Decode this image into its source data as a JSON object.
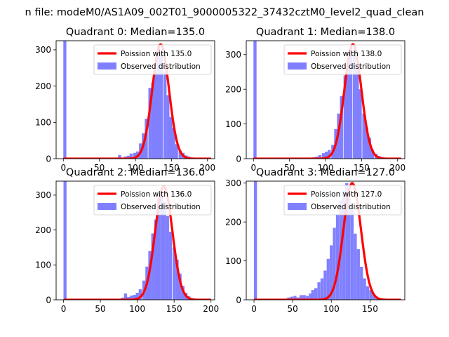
{
  "figure": {
    "suptitle": "n file: modeM0/AS1A09_002T01_9000005322_37432cztM0_level2_quad_clean"
  },
  "colors": {
    "poisson": "#ff0000",
    "observed": "#8080ff",
    "axis": "#000000"
  },
  "chart_data": [
    {
      "type": "bar",
      "title": "Quadrant 0: Median=135.0",
      "xlim": [
        -10,
        210
      ],
      "ylim": [
        0,
        325
      ],
      "xticks": [
        0,
        50,
        100,
        150,
        200
      ],
      "yticks": [
        0,
        100,
        200,
        300
      ],
      "legend_position": "top-right",
      "poisson_mean": 135.0,
      "poisson_peak": 315,
      "series": [
        {
          "name": "Poission with 135.0",
          "kind": "line"
        },
        {
          "name": "Observed distribution",
          "kind": "histogram",
          "bin_width": 4.2,
          "bins_x": [
            0,
            4,
            8,
            13,
            17,
            21,
            25,
            29,
            34,
            38,
            42,
            46,
            50,
            55,
            59,
            63,
            67,
            71,
            76,
            80,
            84,
            88,
            92,
            97,
            101,
            105,
            109,
            113,
            118,
            122,
            126,
            130,
            134,
            139,
            143,
            147,
            151,
            155,
            160,
            164,
            168,
            172,
            176,
            181,
            185,
            189,
            193,
            197
          ],
          "counts": [
            340,
            0,
            0,
            0,
            0,
            0,
            0,
            0,
            0,
            0,
            0,
            0,
            0,
            0,
            0,
            0,
            0,
            0,
            10,
            0,
            6,
            8,
            14,
            16,
            20,
            42,
            70,
            110,
            195,
            210,
            245,
            310,
            290,
            240,
            175,
            115,
            85,
            40,
            22,
            16,
            9,
            6,
            3,
            2,
            1,
            1,
            1,
            1
          ]
        }
      ]
    },
    {
      "type": "bar",
      "title": "Quadrant 1: Median=138.0",
      "xlim": [
        -10,
        210
      ],
      "ylim": [
        0,
        340
      ],
      "xticks": [
        0,
        50,
        100,
        150,
        200
      ],
      "yticks": [
        0,
        100,
        200,
        300
      ],
      "legend_position": "top-right",
      "poisson_mean": 138.0,
      "poisson_peak": 330,
      "series": [
        {
          "name": "Poission with 138.0",
          "kind": "line"
        },
        {
          "name": "Observed distribution",
          "kind": "histogram",
          "bin_width": 4.3,
          "bins_x": [
            0,
            4,
            9,
            13,
            17,
            22,
            26,
            30,
            34,
            39,
            43,
            47,
            52,
            56,
            60,
            65,
            69,
            73,
            77,
            82,
            86,
            90,
            95,
            99,
            103,
            108,
            112,
            116,
            120,
            125,
            129,
            133,
            138,
            142,
            146,
            151,
            155,
            159,
            163,
            168,
            172,
            176,
            181,
            185,
            189,
            194,
            198
          ],
          "counts": [
            340,
            0,
            0,
            0,
            0,
            0,
            0,
            0,
            0,
            0,
            0,
            0,
            0,
            0,
            0,
            0,
            0,
            0,
            3,
            4,
            6,
            10,
            16,
            20,
            25,
            40,
            85,
            130,
            180,
            240,
            270,
            320,
            315,
            260,
            200,
            130,
            90,
            60,
            25,
            14,
            8,
            5,
            3,
            2,
            1,
            1,
            1
          ]
        }
      ]
    },
    {
      "type": "bar",
      "title": "Quadrant 2: Median=136.0",
      "xlim": [
        -10,
        205
      ],
      "ylim": [
        0,
        340
      ],
      "xticks": [
        0,
        50,
        100,
        150,
        200
      ],
      "yticks": [
        0,
        100,
        200,
        300
      ],
      "legend_position": "top-right",
      "poisson_mean": 136.0,
      "poisson_peak": 325,
      "series": [
        {
          "name": "Poission with 136.0",
          "kind": "line"
        },
        {
          "name": "Observed distribution",
          "kind": "histogram",
          "bin_width": 4.1,
          "bins_x": [
            0,
            4,
            8,
            12,
            16,
            20,
            25,
            29,
            33,
            37,
            41,
            45,
            49,
            53,
            57,
            61,
            66,
            70,
            74,
            78,
            82,
            86,
            90,
            94,
            98,
            102,
            107,
            111,
            115,
            119,
            123,
            127,
            131,
            135,
            139,
            143,
            148,
            152,
            156,
            160,
            164,
            168,
            172,
            176,
            180,
            184,
            189,
            193
          ],
          "counts": [
            340,
            0,
            0,
            0,
            0,
            0,
            0,
            0,
            0,
            0,
            0,
            0,
            0,
            0,
            0,
            0,
            0,
            0,
            3,
            6,
            18,
            8,
            12,
            14,
            20,
            30,
            55,
            95,
            140,
            190,
            230,
            290,
            300,
            280,
            240,
            195,
            150,
            115,
            75,
            40,
            20,
            10,
            5,
            3,
            2,
            1,
            1,
            1
          ]
        }
      ]
    },
    {
      "type": "bar",
      "title": "Quadrant 3: Median=127.0",
      "xlim": [
        -10,
        195
      ],
      "ylim": [
        0,
        305
      ],
      "xticks": [
        0,
        50,
        100,
        150
      ],
      "yticks": [
        0,
        100,
        200,
        300
      ],
      "legend_position": "top-right",
      "poisson_mean": 127.0,
      "poisson_peak": 300,
      "series": [
        {
          "name": "Poission with 127.0",
          "kind": "line"
        },
        {
          "name": "Observed distribution",
          "kind": "histogram",
          "bin_width": 3.9,
          "bins_x": [
            0,
            4,
            8,
            12,
            16,
            20,
            24,
            27,
            31,
            35,
            39,
            43,
            47,
            51,
            55,
            59,
            63,
            67,
            71,
            74,
            78,
            82,
            86,
            90,
            94,
            98,
            102,
            106,
            110,
            114,
            118,
            121,
            125,
            129,
            133,
            137,
            141,
            145,
            149,
            153,
            157,
            161,
            165,
            168,
            172,
            176,
            180
          ],
          "counts": [
            340,
            0,
            0,
            0,
            0,
            0,
            0,
            0,
            0,
            2,
            3,
            6,
            8,
            10,
            6,
            12,
            12,
            10,
            16,
            25,
            30,
            45,
            55,
            75,
            105,
            140,
            185,
            220,
            255,
            280,
            300,
            260,
            230,
            170,
            130,
            85,
            55,
            35,
            25,
            15,
            8,
            4,
            2,
            1,
            1,
            1,
            1
          ]
        }
      ]
    }
  ]
}
